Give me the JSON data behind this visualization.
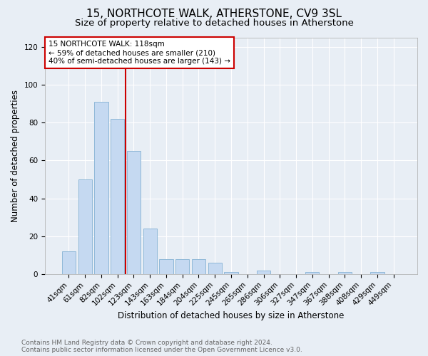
{
  "title": "15, NORTHCOTE WALK, ATHERSTONE, CV9 3SL",
  "subtitle": "Size of property relative to detached houses in Atherstone",
  "xlabel": "Distribution of detached houses by size in Atherstone",
  "ylabel": "Number of detached properties",
  "categories": [
    "41sqm",
    "61sqm",
    "82sqm",
    "102sqm",
    "123sqm",
    "143sqm",
    "163sqm",
    "184sqm",
    "204sqm",
    "225sqm",
    "245sqm",
    "265sqm",
    "286sqm",
    "306sqm",
    "327sqm",
    "347sqm",
    "367sqm",
    "388sqm",
    "408sqm",
    "429sqm",
    "449sqm"
  ],
  "values": [
    12,
    50,
    91,
    82,
    65,
    24,
    8,
    8,
    8,
    6,
    1,
    0,
    2,
    0,
    0,
    1,
    0,
    1,
    0,
    1,
    0
  ],
  "bar_color": "#c5d9f1",
  "bar_edge_color": "#8fb8d8",
  "vline_color": "#cc0000",
  "vline_x_index": 4,
  "annotation_text": "15 NORTHCOTE WALK: 118sqm\n← 59% of detached houses are smaller (210)\n40% of semi-detached houses are larger (143) →",
  "annotation_box_color": "#ffffff",
  "annotation_box_edge_color": "#cc0000",
  "ylim": [
    0,
    125
  ],
  "yticks": [
    0,
    20,
    40,
    60,
    80,
    100,
    120
  ],
  "footer": "Contains HM Land Registry data © Crown copyright and database right 2024.\nContains public sector information licensed under the Open Government Licence v3.0.",
  "bg_color": "#e8eef5",
  "plot_bg_color": "#e8eef5",
  "grid_color": "#ffffff",
  "title_fontsize": 11,
  "subtitle_fontsize": 9.5,
  "axis_label_fontsize": 8.5,
  "tick_fontsize": 7.5,
  "annotation_fontsize": 7.5,
  "footer_fontsize": 6.5
}
